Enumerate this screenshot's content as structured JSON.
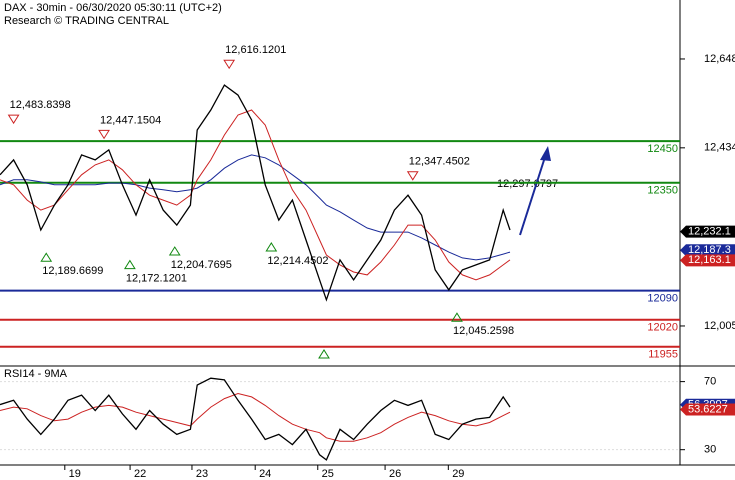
{
  "chart_data": [
    {
      "type": "line",
      "title": "DAX - 30min - 06/30/2020 05:30:11 (UTC+2)",
      "subtitle": "Research © TRADING CENTRAL",
      "note": "12,297.0797",
      "x": [
        0,
        2,
        4,
        6,
        8,
        10,
        12,
        14,
        16,
        18,
        20,
        22,
        24,
        26,
        28,
        29,
        31,
        33,
        35,
        37,
        39,
        41,
        43,
        45,
        47,
        48,
        50,
        52,
        54,
        56,
        58,
        60,
        62,
        64,
        66,
        68,
        70,
        72,
        74,
        75
      ],
      "xlim": [
        0,
        100
      ],
      "xticks": [
        {
          "value": 11,
          "label": "19"
        },
        {
          "value": 20.6,
          "label": "22"
        },
        {
          "value": 29.7,
          "label": "23"
        },
        {
          "value": 39,
          "label": "24"
        },
        {
          "value": 48.2,
          "label": "25"
        },
        {
          "value": 58.1,
          "label": "26"
        },
        {
          "value": 67.4,
          "label": "29"
        }
      ],
      "ylim": [
        11911,
        12790
      ],
      "yticks": [
        {
          "value": 12648,
          "label": "12,648"
        },
        {
          "value": 12434,
          "label": "12,434"
        },
        {
          "value": 12005,
          "label": "12,005"
        }
      ],
      "series": [
        {
          "color": "#000000",
          "values": [
            12369,
            12405,
            12345,
            12236,
            12296,
            12345,
            12417,
            12405,
            12429,
            12345,
            12272,
            12357,
            12284,
            12248,
            12296,
            12477,
            12525,
            12585,
            12561,
            12501,
            12345,
            12260,
            12308,
            12212,
            12116,
            12068,
            12164,
            12116,
            12164,
            12212,
            12284,
            12320,
            12272,
            12140,
            12092,
            12140,
            12152,
            12164,
            12284,
            12236
          ]
        },
        {
          "color": "#cc2222",
          "values": [
            12357,
            12345,
            12308,
            12284,
            12296,
            12333,
            12369,
            12393,
            12405,
            12381,
            12345,
            12320,
            12308,
            12296,
            12320,
            12357,
            12405,
            12465,
            12513,
            12525,
            12489,
            12405,
            12333,
            12284,
            12212,
            12176,
            12152,
            12135,
            12128,
            12159,
            12200,
            12248,
            12248,
            12212,
            12159,
            12128,
            12116,
            12128,
            12152,
            12164
          ]
        },
        {
          "color": "#1a2a99",
          "values": [
            12345,
            12357,
            12357,
            12352,
            12345,
            12345,
            12345,
            12345,
            12349,
            12349,
            12345,
            12337,
            12333,
            12328,
            12333,
            12337,
            12357,
            12385,
            12405,
            12417,
            12410,
            12393,
            12369,
            12345,
            12313,
            12296,
            12280,
            12260,
            12241,
            12231,
            12231,
            12231,
            12217,
            12200,
            12183,
            12169,
            12164,
            12169,
            12178,
            12183
          ]
        }
      ],
      "levels": [
        {
          "value": 12450,
          "color": "#118811"
        },
        {
          "value": 12350,
          "color": "#118811"
        },
        {
          "value": 12090,
          "color": "#1a2a99"
        },
        {
          "value": 12020,
          "color": "#cc2222"
        },
        {
          "value": 11955,
          "color": "#cc2222"
        }
      ],
      "price_tags": [
        {
          "value": 12232.1,
          "label": "12,232.1",
          "color": "#000000"
        },
        {
          "value": 12187.3,
          "label": "12,187.3",
          "color": "#1a2a99"
        },
        {
          "value": 12163.1,
          "label": "12,163.1",
          "color": "#cc2222"
        }
      ],
      "annotations": [
        {
          "label": "12,483.8398",
          "x": 2,
          "value": 12483.8398,
          "dir": "down"
        },
        {
          "label": "12,447.1504",
          "x": 15.3,
          "value": 12447.1504,
          "dir": "down"
        },
        {
          "label": "12,616.1201",
          "x": 33.7,
          "value": 12616.1201,
          "dir": "down"
        },
        {
          "label": "12,347.4502",
          "x": 60.7,
          "value": 12347.4502,
          "dir": "down"
        },
        {
          "label": "12,189.6699",
          "x": 6.8,
          "value": 12189.6699,
          "dir": "up"
        },
        {
          "label": "12,172.1201",
          "x": 19.1,
          "value": 12172.1201,
          "dir": "up"
        },
        {
          "label": "12,204.7695",
          "x": 25.7,
          "value": 12204.7695,
          "dir": "up"
        },
        {
          "label": "12,214.4502",
          "x": 39.9,
          "value": 12214.4502,
          "dir": "up"
        },
        {
          "label": "12,045.2598",
          "x": 67.2,
          "value": 12045.2598,
          "dir": "up"
        }
      ]
    },
    {
      "type": "line",
      "title": "RSI14 - 9MA",
      "x": [
        0,
        2,
        4,
        6,
        8,
        10,
        12,
        14,
        16,
        18,
        20,
        22,
        24,
        26,
        28,
        29,
        31,
        33,
        35,
        37,
        39,
        41,
        43,
        45,
        47,
        48,
        50,
        52,
        54,
        56,
        58,
        60,
        62,
        64,
        66,
        68,
        70,
        72,
        74,
        75
      ],
      "xlim": [
        0,
        100
      ],
      "ylim": [
        21,
        78
      ],
      "yticks": [
        70,
        30
      ],
      "series": [
        {
          "color": "#000000",
          "values": [
            56.5,
            59,
            48,
            39,
            48,
            59,
            62,
            53,
            62,
            51,
            42,
            53,
            45,
            39,
            42,
            68,
            72,
            71,
            59,
            48,
            36,
            39,
            33,
            42,
            27,
            24,
            42,
            36,
            45,
            53,
            59,
            56,
            59,
            39,
            36,
            45,
            48,
            49,
            61,
            55
          ]
        },
        {
          "color": "#cc2222",
          "values": [
            53,
            55,
            54,
            50,
            47,
            48,
            52,
            55,
            56,
            55,
            52,
            50,
            48,
            46,
            44,
            48,
            55,
            60,
            63,
            61,
            56,
            50,
            45,
            42,
            40,
            37,
            35,
            35,
            37,
            40,
            45,
            49,
            52,
            50,
            47,
            45,
            44,
            46,
            50,
            52
          ]
        }
      ],
      "price_tags": [
        {
          "value": 56.3997,
          "label": "56.3997",
          "color": "#1a2a99"
        },
        {
          "value": 53.6227,
          "label": "53.6227",
          "color": "#cc2222"
        }
      ]
    }
  ]
}
